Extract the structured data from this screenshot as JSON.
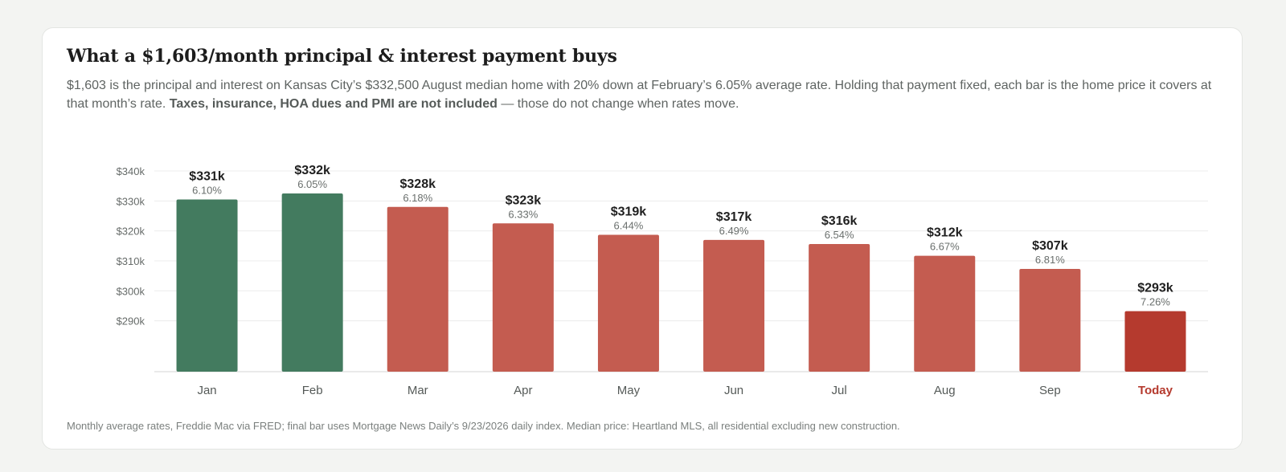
{
  "header": {
    "title": "What a $1,603/month principal & interest payment buys",
    "subtitle_part1": "$1,603 is the principal and interest on Kansas City’s $332,500 August median home with 20% down at February’s 6.05% average rate. Holding that payment fixed, each bar is the home price it covers at that month’s rate. ",
    "subtitle_bold": "Taxes, insurance, HOA dues and PMI are not included",
    "subtitle_part2": " — those do not change when rates move."
  },
  "footnote": "Monthly average rates, Freddie Mac via FRED; final bar uses Mortgage News Daily’s 9/23/2026 daily index. Median price: Heartland MLS, all residential excluding new construction.",
  "colors": {
    "above_baseline": "#437b5f",
    "below_baseline": "#c45c50",
    "today": "#b53a2e",
    "grid": "#ececec",
    "axis_text": "#666b69",
    "value_text": "#1f1f1f",
    "rate_text": "#6a6f6d"
  },
  "chart_data": {
    "type": "bar",
    "categories": [
      "Jan",
      "Feb",
      "Mar",
      "Apr",
      "May",
      "Jun",
      "Jul",
      "Aug",
      "Sep",
      "Today"
    ],
    "values": [
      330.5,
      332.5,
      328,
      322.5,
      318.7,
      317,
      315.6,
      311.7,
      307.3,
      293.2
    ],
    "value_labels": [
      "$331k",
      "$332k",
      "$328k",
      "$323k",
      "$319k",
      "$317k",
      "$316k",
      "$312k",
      "$307k",
      "$293k"
    ],
    "rate_labels": [
      "6.10%",
      "6.05%",
      "6.18%",
      "6.33%",
      "6.44%",
      "6.49%",
      "6.54%",
      "6.67%",
      "6.81%",
      "7.26%"
    ],
    "bar_color_groups": [
      "above",
      "above",
      "below",
      "below",
      "below",
      "below",
      "below",
      "below",
      "below",
      "today"
    ],
    "yticks": [
      290,
      300,
      310,
      320,
      330,
      340
    ],
    "ytick_labels": [
      "$290k",
      "$300k",
      "$310k",
      "$320k",
      "$330k",
      "$340k"
    ],
    "ylim": [
      273,
      340
    ],
    "grid": true,
    "legend": "none",
    "xlabel": "",
    "ylabel": ""
  }
}
